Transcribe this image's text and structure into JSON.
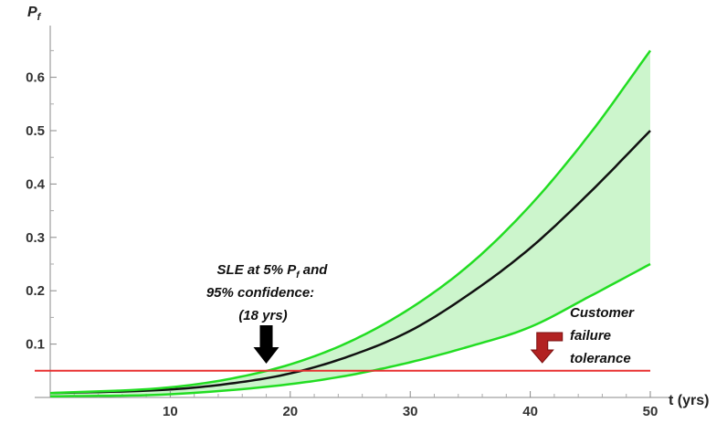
{
  "chart_data": {
    "type": "line",
    "x_ticks": [
      10,
      20,
      30,
      40,
      50
    ],
    "y_ticks": [
      "0.1",
      "0.2",
      "0.3",
      "0.4",
      "0.5",
      "0.6"
    ],
    "y_tick_values": [
      0.1,
      0.2,
      0.3,
      0.4,
      0.5,
      0.6
    ],
    "xlim": [
      0,
      50
    ],
    "ylim": [
      0,
      0.68
    ],
    "xlabel": "t (yrs)",
    "ylabel_main": "P",
    "ylabel_sub": "f",
    "grid": false,
    "series": [
      {
        "role": "lower-bound",
        "color": "#22dd22",
        "points": [
          [
            0,
            0.002
          ],
          [
            10,
            0.006
          ],
          [
            20,
            0.025
          ],
          [
            25,
            0.042
          ],
          [
            30,
            0.066
          ],
          [
            35,
            0.096
          ],
          [
            40,
            0.132
          ],
          [
            45,
            0.19
          ],
          [
            50,
            0.25
          ]
        ]
      },
      {
        "role": "median",
        "color": "#111111",
        "points": [
          [
            0,
            0.008
          ],
          [
            10,
            0.015
          ],
          [
            15,
            0.026
          ],
          [
            20,
            0.045
          ],
          [
            25,
            0.078
          ],
          [
            30,
            0.125
          ],
          [
            35,
            0.195
          ],
          [
            40,
            0.28
          ],
          [
            45,
            0.385
          ],
          [
            50,
            0.5
          ]
        ]
      },
      {
        "role": "upper-bound",
        "color": "#22dd22",
        "points": [
          [
            0,
            0.008
          ],
          [
            10,
            0.019
          ],
          [
            15,
            0.035
          ],
          [
            20,
            0.062
          ],
          [
            25,
            0.105
          ],
          [
            30,
            0.167
          ],
          [
            35,
            0.25
          ],
          [
            40,
            0.36
          ],
          [
            45,
            0.495
          ],
          [
            50,
            0.65
          ]
        ]
      }
    ],
    "band_fill": "#ccf5cc",
    "threshold": {
      "y": 0.05,
      "color": "#e83030"
    },
    "annotations": {
      "sle_line1_main": "SLE at 5% P",
      "sle_line1_sub": "f",
      "sle_line1_end": " and",
      "sle_line2": "95% confidence:",
      "sle_line3": "(18 yrs)",
      "sle_arrow_x": 18,
      "customer_line1": "Customer",
      "customer_line2": "failure",
      "customer_line3": "tolerance",
      "customer_arrow_x": 41,
      "customer_arrow_color": "#b22222"
    }
  }
}
